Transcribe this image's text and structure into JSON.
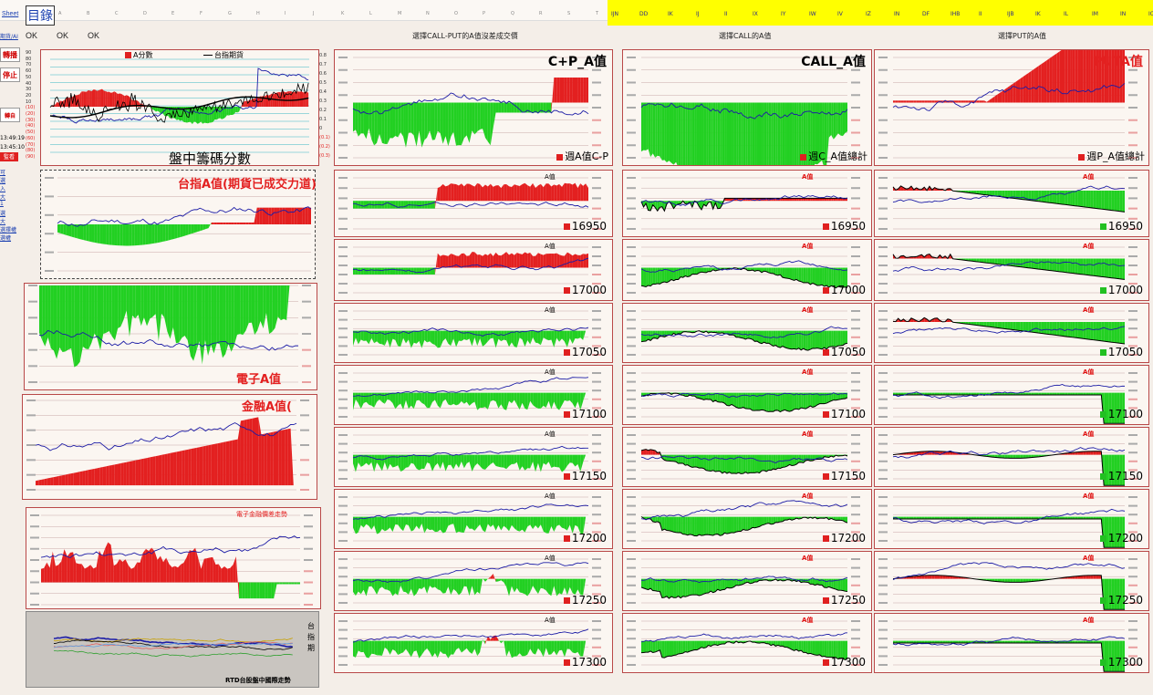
{
  "top": {
    "sheet_tab": "Sheet",
    "directory_button": "目錄",
    "col_headers_left": [
      "A",
      "B",
      "C",
      "D",
      "E",
      "F",
      "G",
      "H",
      "I",
      "J",
      "K",
      "L",
      "M",
      "N",
      "O",
      "P",
      "Q",
      "R",
      "S",
      "T"
    ],
    "col_headers_right": [
      "IJN",
      "DD",
      "IK",
      "IJ",
      "II",
      "IX",
      "IY",
      "IW",
      "IV",
      "IZ",
      "IN",
      "DF",
      "IHB",
      "II",
      "IJB",
      "IK",
      "IL",
      "IM",
      "IN",
      "IO"
    ],
    "ok_labels": [
      "OK",
      "OK",
      "OK"
    ],
    "section_titles": [
      "選擇CALL-PUT的A值沒差成交價",
      "選擇CALL的A值",
      "選擇PUT的A值"
    ],
    "yellow_bar_color": "#ffff00"
  },
  "sidebar": {
    "link_top": "期貨/AI",
    "buttons": [
      "轉播",
      "停止",
      "轉自"
    ],
    "times": [
      "13:49:19",
      "13:45:10"
    ],
    "small_red_btn": "監看",
    "links": [
      "可",
      "選",
      "入",
      "大",
      "1",
      "選",
      "大",
      "選擇權",
      "選權"
    ]
  },
  "colors": {
    "red": "#e32020",
    "green": "#22d022",
    "blue_line": "#1c1ca6",
    "black_line": "#000000",
    "panel_border": "#b94848",
    "title_red": "#e32020"
  },
  "chart_data": [
    {
      "id": "chip-score",
      "type": "line",
      "title": "盤中籌碼分數",
      "legend": [
        "A分數",
        "台指期貨"
      ],
      "ylim_left": [
        -90,
        90
      ],
      "ylim_right": [
        -0.3,
        0.8
      ],
      "yticks_left": [
        90,
        80,
        70,
        60,
        50,
        40,
        30,
        20,
        10,
        -10,
        -20,
        -30,
        -40,
        -50,
        -60,
        -70,
        -80,
        -90
      ],
      "yticks_right": [
        "0.8",
        "0.7",
        "0.6",
        "0.5",
        "0.4",
        "0.3",
        "0.2",
        "0.1",
        "0",
        "(0.1)",
        "(0.2)",
        "(0.3)"
      ]
    },
    {
      "id": "taiex-a",
      "type": "area",
      "title": "台指A值(期貨已成交力道)"
    },
    {
      "id": "elec-a",
      "type": "area",
      "title": "電子A值"
    },
    {
      "id": "fin-a",
      "type": "area",
      "title": "金融A值("
    },
    {
      "id": "elec-diff",
      "type": "area",
      "title": "電子金融價差走勢"
    },
    {
      "id": "intl",
      "type": "line",
      "title": "RTD台股盤中國際走勢",
      "legend": [
        "台",
        "指",
        "期",
        "日"
      ]
    },
    {
      "id": "cp-total",
      "type": "area",
      "title": "C+P_A值",
      "subtitle": "週A值C-P"
    },
    {
      "id": "call-total",
      "type": "area",
      "title": "CALL_A值",
      "subtitle": "週C_A值總計"
    },
    {
      "id": "put-total",
      "type": "area",
      "title": "PUTA值",
      "subtitle": "週P_A值總計"
    },
    {
      "id": "strikes",
      "type": "area",
      "label": "A值",
      "values": [
        "16950",
        "17000",
        "17050",
        "17100",
        "17150",
        "17200",
        "17250",
        "17300"
      ]
    }
  ]
}
